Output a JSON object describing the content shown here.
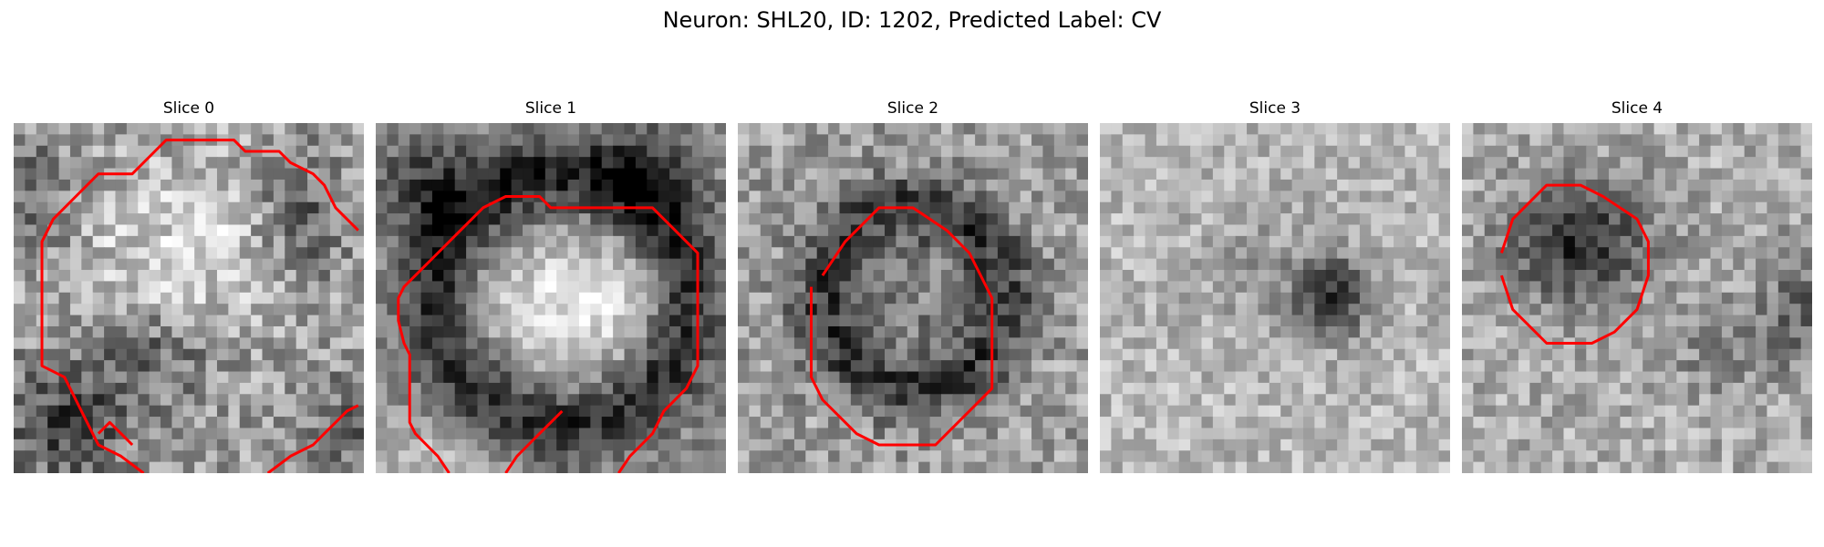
{
  "figure": {
    "title": "Neuron: SHL20, ID: 1202, Predicted Label: CV",
    "contour_color": "#ff0000"
  },
  "panels": [
    {
      "title": "Slice 0",
      "image_description": "noisy grayscale patch, bright textured centre, dark rim at bottom-left and right"
    },
    {
      "title": "Slice 1",
      "image_description": "bright round cell body surrounded by dark ring"
    },
    {
      "title": "Slice 2",
      "image_description": "dark ring-shaped region in centre on noisy gray background"
    },
    {
      "title": "Slice 3",
      "image_description": "mostly light noisy patch with small dark spot right of centre, no contour"
    },
    {
      "title": "Slice 4",
      "image_description": "dark blob upper-left inside octagonal contour, dark region at right edge"
    }
  ]
}
